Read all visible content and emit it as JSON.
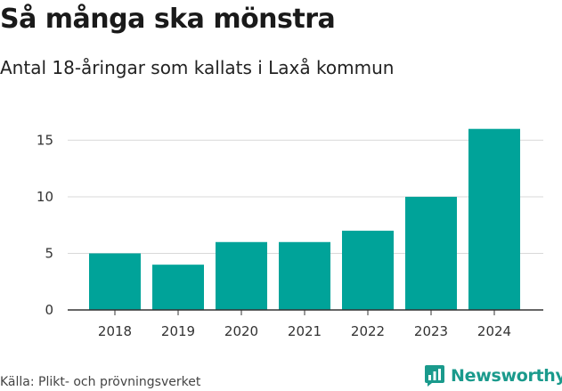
{
  "title": "Så många ska mönstra",
  "subtitle": "Antal 18-åringar som kallats i Laxå kommun",
  "source": "Källa: Plikt- och prövningsverket",
  "brand": {
    "name": "Newsworthy",
    "icon": "bar-chart-icon"
  },
  "colors": {
    "bar": "#00a399",
    "grid": "#d9d9d9",
    "axis": "#333333",
    "brand": "#1a9a8c"
  },
  "chart_data": {
    "type": "bar",
    "title": "Så många ska mönstra",
    "subtitle": "Antal 18-åringar som kallats i Laxå kommun",
    "categories": [
      "2018",
      "2019",
      "2020",
      "2021",
      "2022",
      "2023",
      "2024"
    ],
    "values": [
      5,
      4,
      6,
      6,
      7,
      10,
      16
    ],
    "ylim": [
      0,
      17
    ],
    "yticks": [
      0,
      5,
      10,
      15
    ],
    "xlabel": "",
    "ylabel": "",
    "grid": true,
    "legend": "none"
  }
}
